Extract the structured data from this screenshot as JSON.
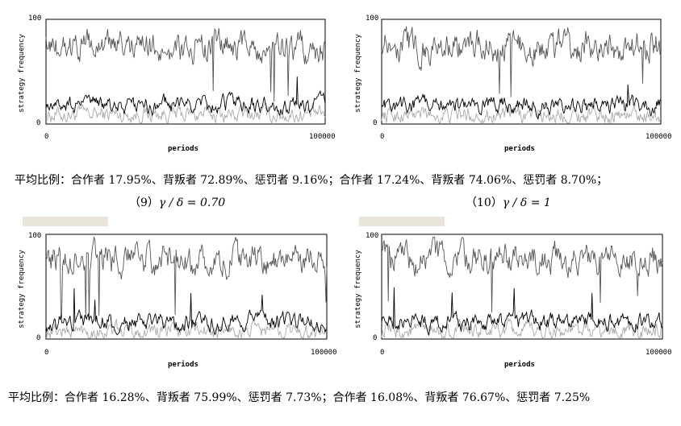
{
  "chart_data": [
    {
      "type": "line",
      "xlabel": "periods",
      "ylabel": "strategy frequency",
      "xlim": [
        0,
        100000
      ],
      "ylim": [
        0,
        100
      ],
      "xticks": [
        "0",
        "100000"
      ],
      "yticks": [
        "0",
        "100"
      ],
      "series": [
        {
          "color": "#555555",
          "level": 72.89
        },
        {
          "color": "#000000",
          "level": 17.95
        },
        {
          "color": "#aaaaaa",
          "level": 9.16
        }
      ]
    },
    {
      "type": "line",
      "xlabel": "periods",
      "ylabel": "strategy frequency",
      "xlim": [
        0,
        100000
      ],
      "ylim": [
        0,
        100
      ],
      "xticks": [
        "0",
        "100000"
      ],
      "yticks": [
        "0",
        "100"
      ],
      "series": [
        {
          "color": "#555555",
          "level": 74.06
        },
        {
          "color": "#000000",
          "level": 17.24
        },
        {
          "color": "#aaaaaa",
          "level": 8.7
        }
      ]
    },
    {
      "type": "line",
      "xlabel": "periods",
      "ylabel": "strategy frequency",
      "xlim": [
        0,
        100000
      ],
      "ylim": [
        0,
        100
      ],
      "xticks": [
        "0",
        "100000"
      ],
      "yticks": [
        "0",
        "100"
      ],
      "series": [
        {
          "color": "#555555",
          "level": 75.99
        },
        {
          "color": "#000000",
          "level": 16.28
        },
        {
          "color": "#aaaaaa",
          "level": 7.73
        }
      ]
    },
    {
      "type": "line",
      "xlabel": "periods",
      "ylabel": "strategy frequency",
      "xlim": [
        0,
        100000
      ],
      "ylim": [
        0,
        100
      ],
      "xticks": [
        "0",
        "100000"
      ],
      "yticks": [
        "0",
        "100"
      ],
      "series": [
        {
          "color": "#555555",
          "level": 76.67
        },
        {
          "color": "#000000",
          "level": 16.08
        },
        {
          "color": "#aaaaaa",
          "level": 7.25
        }
      ]
    }
  ],
  "captions": {
    "row1": "平均比例：合作者 17.95%、背叛者 72.89%、惩罚者 9.16%；合作者 17.24%、背叛者 74.06%、惩罚者 8.70%；",
    "row2": "平均比例：合作者 16.28%、背叛者 75.99%、惩罚者 7.73%；合作者 16.08%、背叛者 76.67%、惩罚者 7.25%"
  },
  "subcaptions": {
    "left_num": "（9）",
    "left_math": "γ / δ = 0.70",
    "right_num": "（10）",
    "right_math": "γ / δ = 1"
  },
  "colors": {
    "highlight": "#e9e5d8",
    "defector": "#555555",
    "cooperator": "#000000",
    "punisher": "#aaaaaa"
  }
}
